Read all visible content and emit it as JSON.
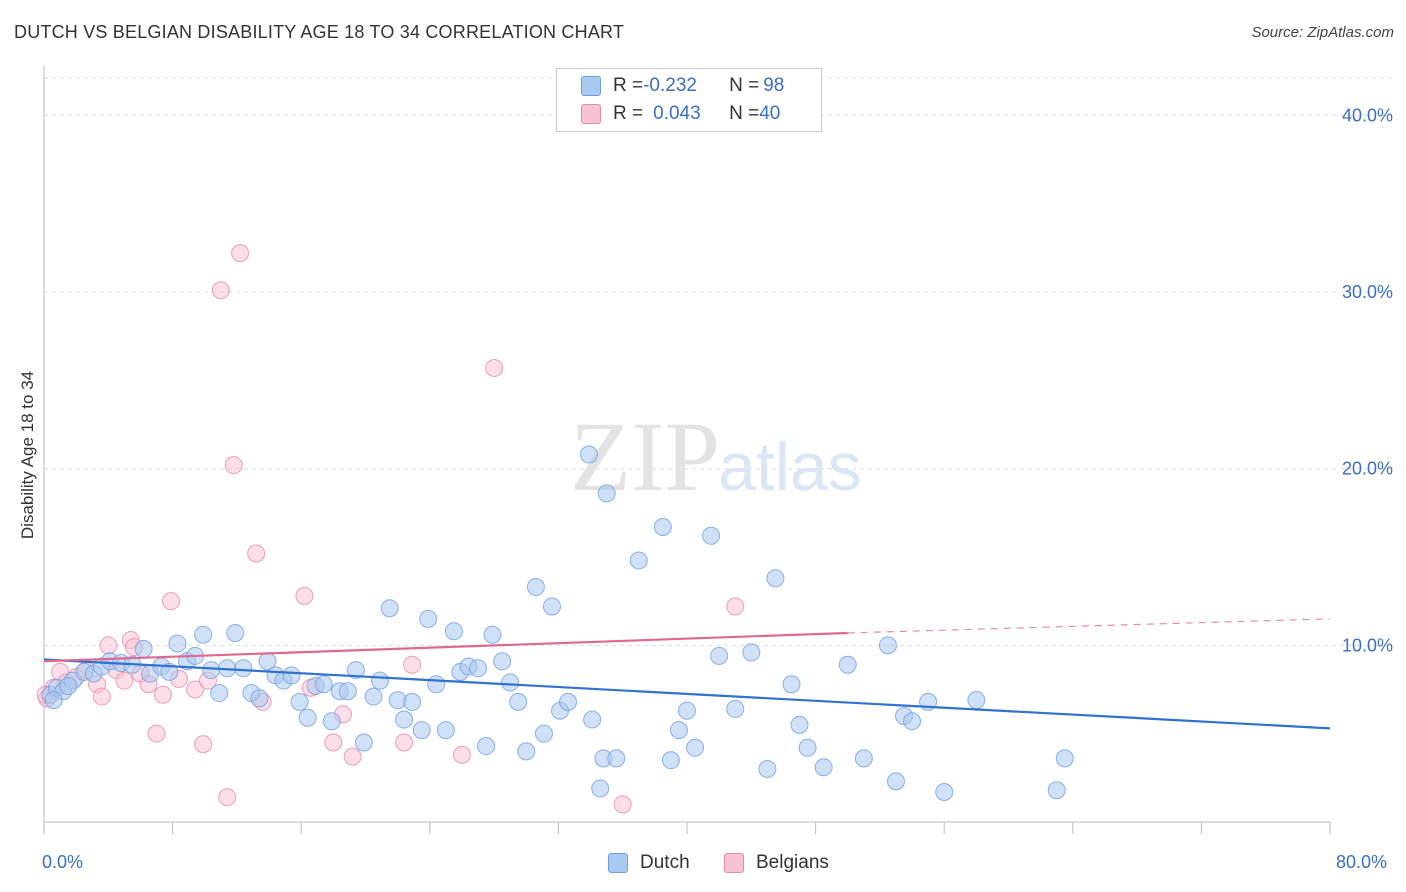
{
  "header": {
    "title": "DUTCH VS BELGIAN DISABILITY AGE 18 TO 34 CORRELATION CHART",
    "source": "Source: ZipAtlas.com"
  },
  "watermark": {
    "zip": "ZIP",
    "atlas": "atlas"
  },
  "legend": {
    "rows": [
      {
        "r_label": "R = ",
        "r_value": "-0.232",
        "n_label": "N = ",
        "n_value": "98",
        "color": "#a9c9f0",
        "border": "#6f9fe0"
      },
      {
        "r_label": "R = ",
        "r_value": "0.043",
        "n_label": "N = ",
        "n_value": "40",
        "color": "#f7c3d3",
        "border": "#e98aa8"
      }
    ]
  },
  "bottom_legend": [
    {
      "label": "Dutch",
      "color": "#a9c9f0",
      "border": "#6f9fe0"
    },
    {
      "label": "Belgians",
      "color": "#f7c3d3",
      "border": "#e98aa8"
    }
  ],
  "chart_data": {
    "type": "scatter",
    "title": "DUTCH VS BELGIAN DISABILITY AGE 18 TO 34 CORRELATION CHART",
    "xlabel": "",
    "ylabel": "Disability Age 18 to 34",
    "xlim": [
      0,
      80
    ],
    "ylim": [
      0,
      42
    ],
    "x_tick_labels": [
      "0.0%",
      "80.0%"
    ],
    "y_ticks": [
      10,
      20,
      30,
      40
    ],
    "y_tick_labels": [
      "10.0%",
      "20.0%",
      "30.0%",
      "40.0%"
    ],
    "grid": true,
    "legend_position": "top-center",
    "series": [
      {
        "name": "Dutch",
        "color": "#6f9fe0",
        "fill": "#a9c9f0",
        "trend": {
          "x": [
            0,
            80
          ],
          "y": [
            9.2,
            5.3
          ]
        },
        "points": [
          [
            0.4,
            7.2
          ],
          [
            0.8,
            7.6
          ],
          [
            1.2,
            7.4
          ],
          [
            1.8,
            8.0
          ],
          [
            2.5,
            8.5
          ],
          [
            3.1,
            8.4
          ],
          [
            3.6,
            8.8
          ],
          [
            4.1,
            9.1
          ],
          [
            4.8,
            9.0
          ],
          [
            5.5,
            8.9
          ],
          [
            6.2,
            9.8
          ],
          [
            6.6,
            8.4
          ],
          [
            7.3,
            8.8
          ],
          [
            7.8,
            8.5
          ],
          [
            8.3,
            10.1
          ],
          [
            8.9,
            9.1
          ],
          [
            9.4,
            9.4
          ],
          [
            9.9,
            10.6
          ],
          [
            10.4,
            8.6
          ],
          [
            10.9,
            7.3
          ],
          [
            11.4,
            8.7
          ],
          [
            11.9,
            10.7
          ],
          [
            12.4,
            8.7
          ],
          [
            12.9,
            7.3
          ],
          [
            13.4,
            7.0
          ],
          [
            13.9,
            9.1
          ],
          [
            14.4,
            8.3
          ],
          [
            14.9,
            8.0
          ],
          [
            15.4,
            8.3
          ],
          [
            15.9,
            6.8
          ],
          [
            16.4,
            5.9
          ],
          [
            16.9,
            7.7
          ],
          [
            17.4,
            7.8
          ],
          [
            17.9,
            5.7
          ],
          [
            18.4,
            7.4
          ],
          [
            18.9,
            7.4
          ],
          [
            19.4,
            8.6
          ],
          [
            19.9,
            4.5
          ],
          [
            20.5,
            7.1
          ],
          [
            20.9,
            8.0
          ],
          [
            21.5,
            12.1
          ],
          [
            22.0,
            6.9
          ],
          [
            22.4,
            5.8
          ],
          [
            22.9,
            6.8
          ],
          [
            23.5,
            5.2
          ],
          [
            23.9,
            11.5
          ],
          [
            24.4,
            7.8
          ],
          [
            25.0,
            5.2
          ],
          [
            25.5,
            10.8
          ],
          [
            25.9,
            8.5
          ],
          [
            26.4,
            8.8
          ],
          [
            27.0,
            8.7
          ],
          [
            27.5,
            4.3
          ],
          [
            27.9,
            10.6
          ],
          [
            28.5,
            9.1
          ],
          [
            29.0,
            7.9
          ],
          [
            29.5,
            6.8
          ],
          [
            30.0,
            4.0
          ],
          [
            30.6,
            13.3
          ],
          [
            31.1,
            5.0
          ],
          [
            31.6,
            12.2
          ],
          [
            32.1,
            6.3
          ],
          [
            32.6,
            6.8
          ],
          [
            33.9,
            20.8
          ],
          [
            34.1,
            5.8
          ],
          [
            34.6,
            1.9
          ],
          [
            34.8,
            3.6
          ],
          [
            35.0,
            18.6
          ],
          [
            35.6,
            3.6
          ],
          [
            37.0,
            14.8
          ],
          [
            38.5,
            16.7
          ],
          [
            39.0,
            3.5
          ],
          [
            39.5,
            5.2
          ],
          [
            40.0,
            6.3
          ],
          [
            40.5,
            4.2
          ],
          [
            41.5,
            16.2
          ],
          [
            42.0,
            9.4
          ],
          [
            43.0,
            6.4
          ],
          [
            44.0,
            9.6
          ],
          [
            45.0,
            3.0
          ],
          [
            45.5,
            13.8
          ],
          [
            46.5,
            7.8
          ],
          [
            47.0,
            5.5
          ],
          [
            47.5,
            4.2
          ],
          [
            48.5,
            3.1
          ],
          [
            50.0,
            8.9
          ],
          [
            51.0,
            3.6
          ],
          [
            52.5,
            10.0
          ],
          [
            53.0,
            2.3
          ],
          [
            53.5,
            6.0
          ],
          [
            54.0,
            5.7
          ],
          [
            55.0,
            6.8
          ],
          [
            56.0,
            1.7
          ],
          [
            58.0,
            6.9
          ],
          [
            63.0,
            1.8
          ],
          [
            63.5,
            3.6
          ],
          [
            0.6,
            6.9
          ],
          [
            1.5,
            7.7
          ]
        ]
      },
      {
        "name": "Belgians",
        "color": "#e98aa8",
        "fill": "#f7c3d3",
        "trend": {
          "x": [
            0,
            50
          ],
          "y": [
            9.1,
            10.7
          ],
          "dash_x": [
            50,
            80
          ],
          "dash_y": [
            10.7,
            11.5
          ]
        },
        "points": [
          [
            0.2,
            7.0
          ],
          [
            0.6,
            7.6
          ],
          [
            1.0,
            8.5
          ],
          [
            1.4,
            7.9
          ],
          [
            2.0,
            8.2
          ],
          [
            2.6,
            8.6
          ],
          [
            3.3,
            7.8
          ],
          [
            3.6,
            7.1
          ],
          [
            4.0,
            10.0
          ],
          [
            4.5,
            8.6
          ],
          [
            5.0,
            8.0
          ],
          [
            5.4,
            10.3
          ],
          [
            5.6,
            9.9
          ],
          [
            6.0,
            8.4
          ],
          [
            6.5,
            7.8
          ],
          [
            7.0,
            5.0
          ],
          [
            7.4,
            7.2
          ],
          [
            7.9,
            12.5
          ],
          [
            8.4,
            8.1
          ],
          [
            9.4,
            7.5
          ],
          [
            9.9,
            4.4
          ],
          [
            10.2,
            8.0
          ],
          [
            11.0,
            30.1
          ],
          [
            11.4,
            1.4
          ],
          [
            11.8,
            20.2
          ],
          [
            12.2,
            32.2
          ],
          [
            13.2,
            15.2
          ],
          [
            13.6,
            6.8
          ],
          [
            16.2,
            12.8
          ],
          [
            16.6,
            7.6
          ],
          [
            18.0,
            4.5
          ],
          [
            18.6,
            6.1
          ],
          [
            19.2,
            3.7
          ],
          [
            22.4,
            4.5
          ],
          [
            22.9,
            8.9
          ],
          [
            26.0,
            3.8
          ],
          [
            28.0,
            25.7
          ],
          [
            36.0,
            1.0
          ],
          [
            43.0,
            12.2
          ],
          [
            0.1,
            7.2
          ]
        ]
      }
    ]
  }
}
